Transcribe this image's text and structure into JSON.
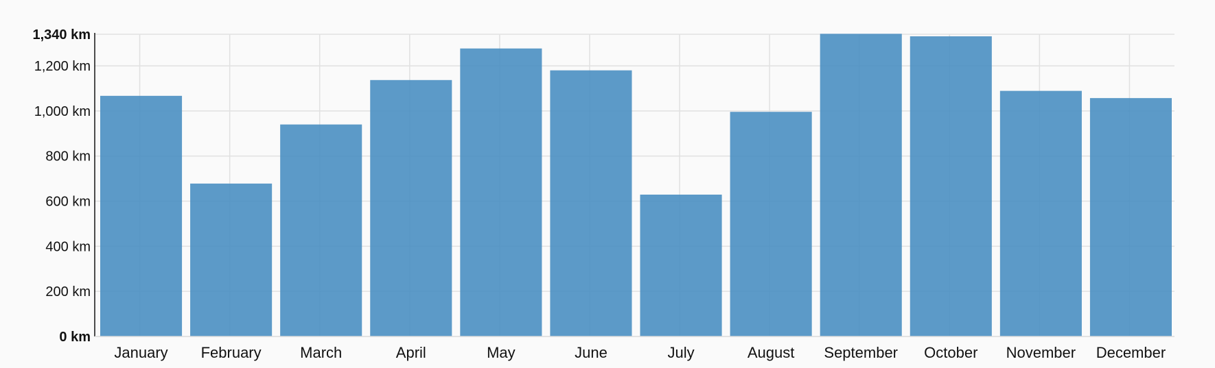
{
  "chart_data": {
    "type": "bar",
    "categories": [
      "January",
      "February",
      "March",
      "April",
      "May",
      "June",
      "July",
      "August",
      "September",
      "October",
      "November",
      "December"
    ],
    "values": [
      1067,
      678,
      940,
      1137,
      1277,
      1180,
      629,
      996,
      1342,
      1331,
      1089,
      1057
    ],
    "ylim": [
      0,
      1340
    ],
    "y_ticks": [
      {
        "value": 0,
        "label": "0 km",
        "bold": true
      },
      {
        "value": 200,
        "label": "200 km",
        "bold": false
      },
      {
        "value": 400,
        "label": "400 km",
        "bold": false
      },
      {
        "value": 600,
        "label": "600 km",
        "bold": false
      },
      {
        "value": 800,
        "label": "800 km",
        "bold": false
      },
      {
        "value": 1000,
        "label": "1,000 km",
        "bold": false
      },
      {
        "value": 1200,
        "label": "1,200 km",
        "bold": false
      },
      {
        "value": 1340,
        "label": "1,340 km",
        "bold": true
      }
    ],
    "grid": true,
    "bar_color": "#4a8fc2",
    "grid_color": "#e1e1e1",
    "axis_color": "#111111",
    "background": "#fafafa"
  }
}
